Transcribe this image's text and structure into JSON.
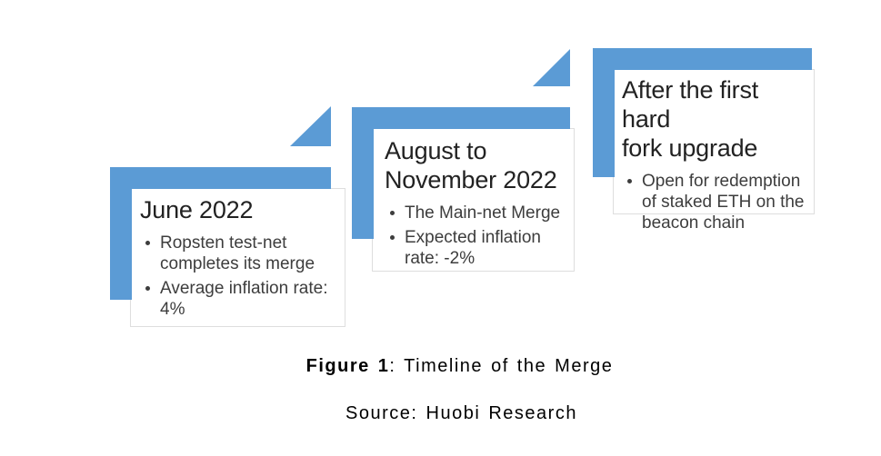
{
  "page": {
    "background": "#ffffff"
  },
  "diagram": {
    "accent_color": "#5b9bd5",
    "steps": [
      {
        "title": "June 2022",
        "bullets": [
          "Ropsten test-net\ncompletes its merge",
          "Average inflation rate:\n4%"
        ]
      },
      {
        "title": "August to\nNovember 2022",
        "bullets": [
          "The Main-net Merge",
          "Expected inflation\nrate: -2%"
        ]
      },
      {
        "title": "After the first hard\nfork upgrade",
        "bullets": [
          "Open for redemption\nof staked ETH on the\nbeacon chain"
        ]
      }
    ]
  },
  "caption": {
    "figure_label": "Figure 1",
    "figure_rest": ": Timeline of the Merge",
    "source": "Source: Huobi Research"
  }
}
